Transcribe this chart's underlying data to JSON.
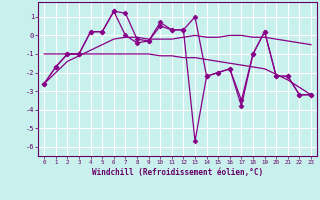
{
  "xlabel": "Windchill (Refroidissement éolien,°C)",
  "background_color": "#c8f0ec",
  "grid_color": "#ffffff",
  "line_color": "#880088",
  "xlim": [
    -0.5,
    23.5
  ],
  "ylim": [
    -6.5,
    1.8
  ],
  "yticks": [
    -6,
    -5,
    -4,
    -3,
    -2,
    -1,
    0,
    1
  ],
  "xticks": [
    0,
    1,
    2,
    3,
    4,
    5,
    6,
    7,
    8,
    9,
    10,
    11,
    12,
    13,
    14,
    15,
    16,
    17,
    18,
    19,
    20,
    21,
    22,
    23
  ],
  "series": [
    {
      "x": [
        0,
        1,
        2,
        3,
        4,
        5,
        6,
        7,
        8,
        9,
        10,
        11,
        12,
        13,
        14,
        15,
        16,
        17,
        18,
        19,
        20,
        21,
        22,
        23
      ],
      "y": [
        -2.6,
        -1.7,
        -1.0,
        -1.0,
        0.2,
        0.2,
        1.3,
        1.2,
        -0.2,
        -0.3,
        0.7,
        0.3,
        0.3,
        1.0,
        -2.2,
        -2.0,
        -1.8,
        -3.5,
        -1.0,
        0.2,
        -2.2,
        -2.2,
        -3.2,
        -3.2
      ],
      "marker": "D",
      "markersize": 2.5,
      "linewidth": 0.9
    },
    {
      "x": [
        0,
        1,
        2,
        3,
        4,
        5,
        6,
        7,
        8,
        9,
        10,
        11,
        12,
        13,
        14,
        15,
        16,
        17,
        18,
        19,
        20,
        21,
        22,
        23
      ],
      "y": [
        -2.6,
        -1.7,
        -1.0,
        -1.0,
        0.2,
        0.2,
        1.3,
        0.0,
        -0.4,
        -0.3,
        0.5,
        0.3,
        0.3,
        -5.7,
        -2.2,
        -2.0,
        -1.8,
        -3.8,
        -1.0,
        0.2,
        -2.2,
        -2.2,
        -3.2,
        -3.2
      ],
      "marker": "D",
      "markersize": 2.5,
      "linewidth": 0.9
    },
    {
      "x": [
        0,
        1,
        2,
        3,
        4,
        5,
        6,
        7,
        8,
        9,
        10,
        11,
        12,
        13,
        14,
        15,
        16,
        17,
        18,
        19,
        20,
        21,
        22,
        23
      ],
      "y": [
        -2.6,
        -2.0,
        -1.4,
        -1.1,
        -0.8,
        -0.5,
        -0.2,
        -0.1,
        -0.1,
        -0.2,
        -0.2,
        -0.2,
        -0.1,
        0.0,
        -0.1,
        -0.1,
        0.0,
        0.0,
        -0.1,
        -0.1,
        -0.2,
        -0.3,
        -0.4,
        -0.5
      ],
      "marker": null,
      "markersize": 0,
      "linewidth": 0.9
    },
    {
      "x": [
        0,
        1,
        2,
        3,
        4,
        5,
        6,
        7,
        8,
        9,
        10,
        11,
        12,
        13,
        14,
        15,
        16,
        17,
        18,
        19,
        20,
        21,
        22,
        23
      ],
      "y": [
        -1.0,
        -1.0,
        -1.0,
        -1.0,
        -1.0,
        -1.0,
        -1.0,
        -1.0,
        -1.0,
        -1.0,
        -1.1,
        -1.1,
        -1.2,
        -1.2,
        -1.3,
        -1.4,
        -1.5,
        -1.6,
        -1.7,
        -1.8,
        -2.1,
        -2.4,
        -2.8,
        -3.2
      ],
      "marker": null,
      "markersize": 0,
      "linewidth": 0.9
    }
  ]
}
